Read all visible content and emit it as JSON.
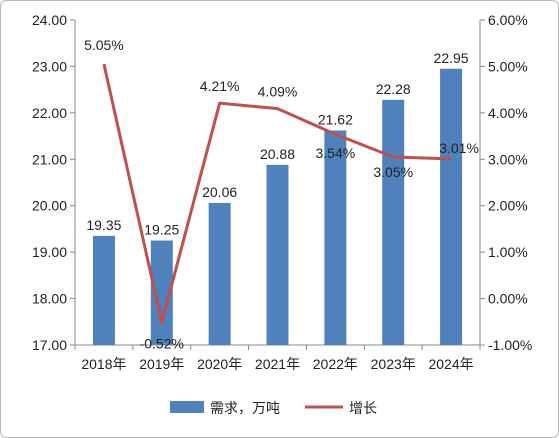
{
  "chart_data": {
    "type": "bar+line",
    "categories": [
      "2018年",
      "2019年",
      "2020年",
      "2021年",
      "2022年",
      "2023年",
      "2024年"
    ],
    "series": [
      {
        "name": "需求，万吨",
        "kind": "bar",
        "axis": "left",
        "color": "#4F81BD",
        "values": [
          19.35,
          19.25,
          20.06,
          20.88,
          21.62,
          22.28,
          22.95
        ],
        "labels": [
          "19.35",
          "19.25",
          "20.06",
          "20.88",
          "21.62",
          "22.28",
          "22.95"
        ]
      },
      {
        "name": "增长",
        "kind": "line",
        "axis": "right",
        "color": "#C0504D",
        "values": [
          5.05,
          -0.52,
          4.21,
          4.09,
          3.54,
          3.05,
          3.01
        ],
        "labels": [
          "5.05%",
          "-0.52%",
          "4.21%",
          "4.09%",
          "3.54%",
          "3.05%",
          "3.01%"
        ]
      }
    ],
    "y_left": {
      "lim": [
        17,
        24
      ],
      "ticks": [
        "17.00",
        "18.00",
        "19.00",
        "20.00",
        "21.00",
        "22.00",
        "23.00",
        "24.00"
      ]
    },
    "y_right": {
      "lim": [
        -1,
        6
      ],
      "ticks": [
        "-1.00%",
        "0.00%",
        "1.00%",
        "2.00%",
        "3.00%",
        "4.00%",
        "5.00%",
        "6.00%"
      ]
    },
    "grid": false,
    "legend_position": "bottom"
  }
}
